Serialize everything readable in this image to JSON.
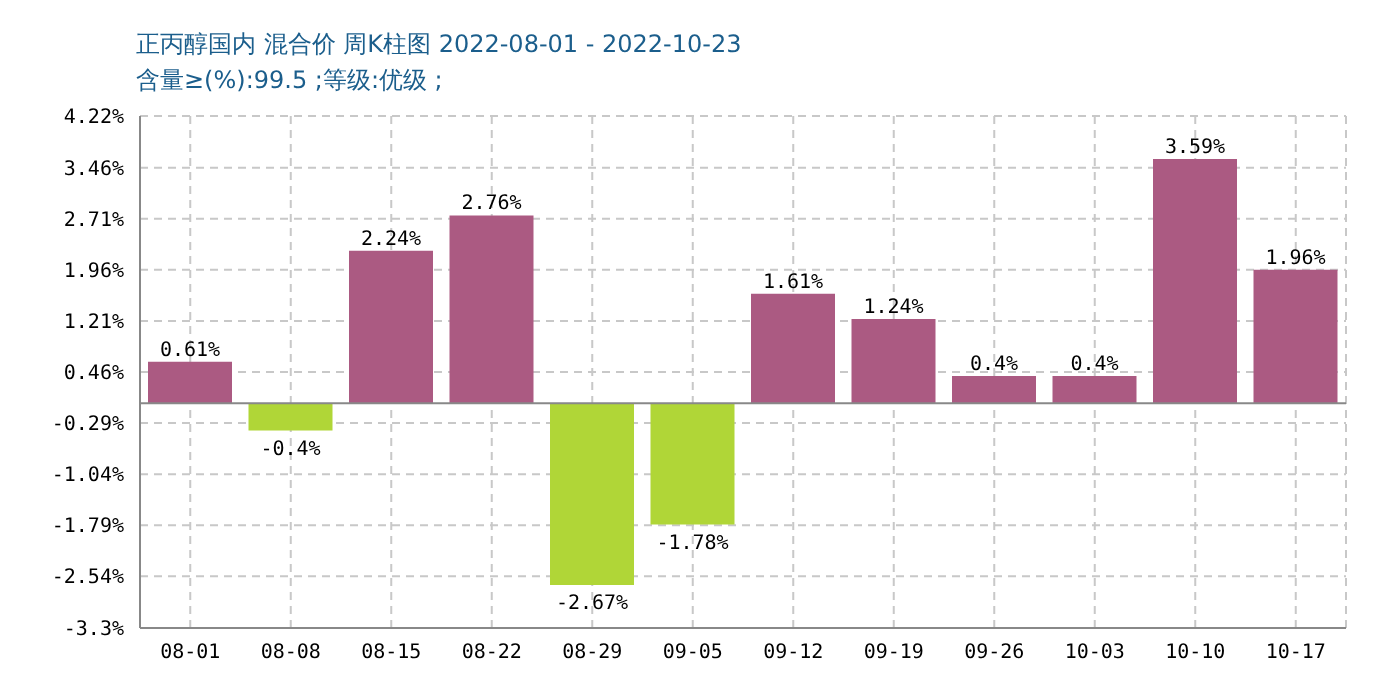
{
  "chart_data": {
    "type": "bar",
    "title": "正丙醇国内 混合价 周K柱图 2022-08-01 - 2022-10-23",
    "subtitle": "含量≥(%):99.5 ;等级:优级 ;",
    "categories": [
      "08-01",
      "08-08",
      "08-15",
      "08-22",
      "08-29",
      "09-05",
      "09-12",
      "09-19",
      "09-26",
      "10-03",
      "10-10",
      "10-17"
    ],
    "values": [
      0.61,
      -0.4,
      2.24,
      2.76,
      -2.67,
      -1.78,
      1.61,
      1.24,
      0.4,
      0.4,
      3.59,
      1.96
    ],
    "colors": [
      "#ab5a82",
      "#b0d637",
      "#ab5a82",
      "#ab5a82",
      "#b0d637",
      "#b0d637",
      "#ab5a82",
      "#ab5a82",
      "#ab5a82",
      "#ab5a82",
      "#ab5a82",
      "#ab5a82"
    ],
    "value_labels": [
      "0.61%",
      "-0.4%",
      "2.24%",
      "2.76%",
      "-2.67%",
      "-1.78%",
      "1.61%",
      "1.24%",
      "0.4%",
      "0.4%",
      "3.59%",
      "1.96%"
    ],
    "ylim": [
      -3.3,
      4.22
    ],
    "yticks": [
      {
        "value": -3.3,
        "label": "-3.3%"
      },
      {
        "value": -2.54,
        "label": "-2.54%"
      },
      {
        "value": -1.79,
        "label": "-1.79%"
      },
      {
        "value": -1.04,
        "label": "-1.04%"
      },
      {
        "value": -0.29,
        "label": "-0.29%"
      },
      {
        "value": 0.46,
        "label": "0.46%"
      },
      {
        "value": 1.21,
        "label": "1.21%"
      },
      {
        "value": 1.96,
        "label": "1.96%"
      },
      {
        "value": 2.71,
        "label": "2.71%"
      },
      {
        "value": 3.46,
        "label": "3.46%"
      },
      {
        "value": 4.22,
        "label": "4.22%"
      }
    ],
    "grid": true
  }
}
